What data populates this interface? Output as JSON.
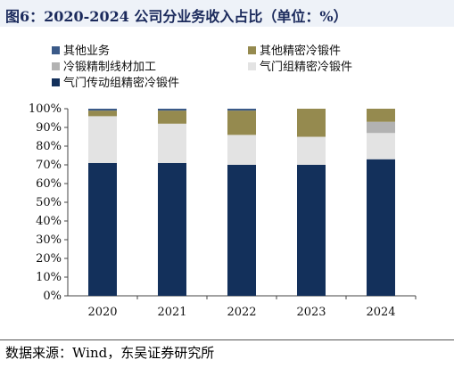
{
  "title": "图6：2020-2024 公司分业务收入占比（单位：%）",
  "source": "数据来源：Wind，东吴证券研究所",
  "chart_data": {
    "type": "bar",
    "stacked": true,
    "categories": [
      "2020",
      "2021",
      "2022",
      "2023",
      "2024"
    ],
    "ylim": [
      0,
      100
    ],
    "yticks": [
      "0%",
      "10%",
      "20%",
      "30%",
      "40%",
      "50%",
      "60%",
      "70%",
      "80%",
      "90%",
      "100%"
    ],
    "grid": false,
    "legend": "top",
    "series": [
      {
        "name": "气门传动组精密冷锻件",
        "color": "#13305b",
        "values": [
          71,
          71,
          70,
          70,
          73
        ]
      },
      {
        "name": "气门组精密冷锻件",
        "color": "#e3e3e3",
        "values": [
          25,
          21,
          16,
          15,
          14
        ]
      },
      {
        "name": "冷锻精制线材加工",
        "color": "#b2b2b2",
        "values": [
          0,
          0,
          0,
          0,
          6
        ]
      },
      {
        "name": "其他精密冷锻件",
        "color": "#958a4f",
        "values": [
          3,
          7,
          13,
          15,
          7
        ]
      },
      {
        "name": "其他业务",
        "color": "#3b5a88",
        "values": [
          1,
          1,
          1,
          0,
          0
        ]
      }
    ]
  }
}
